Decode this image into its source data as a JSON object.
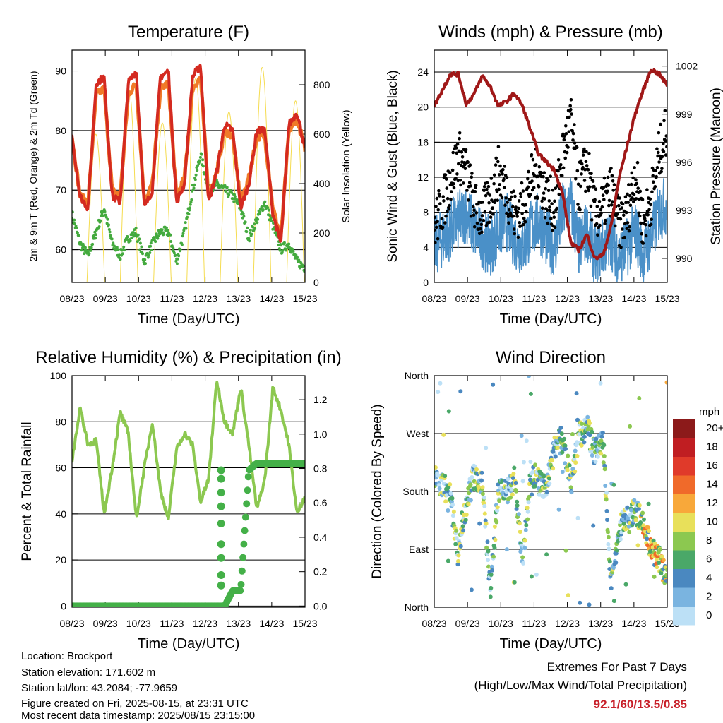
{
  "chart_data": [
    {
      "type": "line",
      "title": "Temperature (F)",
      "xlabel": "Time (Day/UTC)",
      "ylabel": "2m & 9m T (Red, Orange) & 2m Td (Green)",
      "y2label": "Solar Insolation (Yellow)",
      "x_ticks": [
        "08/23",
        "09/23",
        "10/23",
        "11/23",
        "12/23",
        "13/23",
        "14/23",
        "15/23"
      ],
      "ylim": [
        54.5,
        93.5
      ],
      "y_ticks": [
        60,
        70,
        80,
        90
      ],
      "y2lim": [
        0,
        940
      ],
      "y2_ticks": [
        0,
        200,
        400,
        600,
        800
      ],
      "grid": "horizontal",
      "series": [
        {
          "name": "2m T",
          "color": "#d42a20",
          "values": [
            79,
            69,
            67,
            88,
            89,
            69,
            68,
            88,
            90,
            67,
            70,
            89,
            90,
            68,
            71,
            89,
            91,
            68,
            73,
            81,
            80,
            67,
            71,
            80,
            80,
            66,
            61,
            81,
            83,
            77
          ]
        },
        {
          "name": "9m T",
          "color": "#f07a28",
          "values": [
            79,
            69,
            68,
            86,
            87,
            70,
            69,
            86,
            88,
            68,
            71,
            87,
            88,
            69,
            72,
            87,
            89,
            69,
            73,
            80,
            79,
            68,
            72,
            79,
            79,
            67,
            62,
            80,
            82,
            77
          ]
        },
        {
          "name": "2m Td",
          "color": "#44aa3e",
          "values": [
            66,
            61,
            59,
            63,
            67,
            61,
            59,
            62,
            63,
            58,
            61,
            63,
            63,
            58,
            63,
            70,
            76,
            70,
            71,
            70,
            69,
            67,
            62,
            65,
            68,
            64,
            60,
            61,
            58,
            57
          ]
        },
        {
          "name": "Solar Insolation",
          "color": "#f5dc50",
          "axis": "right",
          "values": [
            0,
            0,
            0,
            820,
            860,
            0,
            0,
            880,
            870,
            0,
            0,
            850,
            870,
            0,
            0,
            860,
            880,
            0,
            0,
            700,
            620,
            0,
            0,
            650,
            600,
            0,
            0,
            780,
            800,
            0
          ]
        }
      ]
    },
    {
      "type": "scatter",
      "title": "Winds (mph) & Pressure (mb)",
      "xlabel": "Time (Day/UTC)",
      "ylabel": "Sonic Wind & Gust (Blue, Black)",
      "y2label": "Station Pressure (Maroon)",
      "x_ticks": [
        "08/23",
        "09/23",
        "10/23",
        "11/23",
        "12/23",
        "13/23",
        "14/23",
        "15/23"
      ],
      "ylim": [
        0,
        26.5
      ],
      "y_ticks": [
        0,
        4,
        8,
        12,
        16,
        20,
        24
      ],
      "y2lim": [
        988.5,
        1003
      ],
      "y2_ticks": [
        990,
        993,
        996,
        999,
        1002
      ],
      "grid": "horizontal",
      "series": [
        {
          "name": "Sonic Wind",
          "color": "#4a90c8",
          "values": [
            4,
            5,
            6,
            7,
            8,
            6,
            5,
            4,
            6,
            7,
            5,
            4,
            6,
            7,
            5,
            4,
            8,
            9,
            4,
            6,
            3,
            4,
            5,
            3,
            4,
            6,
            3,
            5,
            8,
            9
          ]
        },
        {
          "name": "Gust",
          "color": "#000000",
          "values": [
            6,
            8,
            11,
            14,
            12,
            8,
            7,
            9,
            12,
            10,
            7,
            8,
            11,
            12,
            9,
            8,
            14,
            18,
            10,
            13,
            7,
            8,
            10,
            6,
            7,
            12,
            6,
            9,
            14,
            17
          ]
        },
        {
          "name": "Station Pressure",
          "color": "#a01818",
          "axis": "right",
          "values": [
            999.5,
            1000.5,
            1001.5,
            1001.5,
            999.6,
            1000.3,
            1001.4,
            1000.7,
            999.5,
            999.8,
            1000.3,
            999.5,
            998.0,
            996.5,
            996.0,
            995.5,
            994.0,
            991.0,
            990.5,
            991.5,
            990.0,
            990.2,
            992.0,
            995.0,
            997.0,
            999.0,
            1000.5,
            1001.8,
            1001.5,
            1000.8
          ]
        }
      ]
    },
    {
      "type": "line",
      "title": "Relative Humidity (%) & Precipitation (in)",
      "xlabel": "Time (Day/UTC)",
      "ylabel": "Percent & Total Rainfall",
      "x_ticks": [
        "08/23",
        "09/23",
        "10/23",
        "11/23",
        "12/23",
        "13/23",
        "14/23",
        "15/23"
      ],
      "ylim": [
        -0.5,
        100
      ],
      "y_ticks": [
        0,
        20,
        40,
        60,
        80,
        100
      ],
      "y2lim": [
        -0.0066,
        1.34
      ],
      "y2_ticks": [
        0.0,
        0.2,
        0.4,
        0.6,
        0.8,
        1.0,
        1.2
      ],
      "grid": "horizontal",
      "series": [
        {
          "name": "Relative Humidity",
          "color": "#8cc850",
          "values": [
            63,
            86,
            70,
            72,
            40,
            60,
            84,
            75,
            38,
            60,
            80,
            50,
            38,
            68,
            75,
            70,
            45,
            55,
            98,
            80,
            75,
            95,
            70,
            42,
            55,
            95,
            85,
            70,
            40,
            48
          ]
        },
        {
          "name": "Total Rainfall",
          "color": "#44b048",
          "axis": "right",
          "values": [
            0.0,
            0.0,
            0.0,
            0.0,
            0.0,
            0.0,
            0.0,
            0.0,
            0.0,
            0.0,
            0.0,
            0.0,
            0.0,
            0.0,
            0.0,
            0.0,
            0.0,
            0.0,
            0.0,
            0.0,
            0.09,
            0.09,
            0.79,
            0.83,
            0.83,
            0.83,
            0.83,
            0.83,
            0.83,
            0.83
          ]
        }
      ]
    },
    {
      "type": "scatter",
      "title": "Wind Direction",
      "xlabel": "Time (Day/UTC)",
      "ylabel": "Direction (Colored By Speed)",
      "x_ticks": [
        "08/23",
        "09/23",
        "10/23",
        "11/23",
        "12/23",
        "13/23",
        "14/23",
        "15/23"
      ],
      "y_ticks": [
        "North",
        "East",
        "South",
        "West",
        "North"
      ],
      "ylim": [
        0,
        360
      ],
      "grid": "horizontal",
      "legend": {
        "title": "mph",
        "labels": [
          "20+",
          "18",
          "16",
          "14",
          "12",
          "10",
          "8",
          "6",
          "4",
          "2",
          "0"
        ],
        "colors": [
          "#8c1a1a",
          "#c01e22",
          "#e03a2a",
          "#f06a2a",
          "#f8a83a",
          "#e8e05a",
          "#8cc850",
          "#4aa868",
          "#4a88c0",
          "#7ab4e0",
          "#bce0f6"
        ]
      },
      "series": [
        {
          "name": "Wind Direction",
          "values": [
            200,
            190,
            175,
            80,
            160,
            205,
            190,
            30,
            185,
            180,
            200,
            60,
            215,
            195,
            185,
            250,
            260,
            190,
            265,
            280,
            240,
            260,
            40,
            120,
            140,
            150,
            130,
            90,
            75,
            40
          ]
        }
      ]
    }
  ],
  "footer": {
    "location": "Location: Brockport",
    "elevation": "Station elevation: 171.602 m",
    "latlon": "Station lat/lon: 43.2084; -77.9659",
    "created": "Figure created on Fri, 2025-08-15, at 23:31 UTC",
    "recent": "Most recent data timestamp: 2025/08/15 23:15:00"
  },
  "extremes": {
    "title": "Extremes For Past 7 Days",
    "subtitle": "(High/Low/Max Wind/Total Precipitation)",
    "values": "92.1/60/13.5/0.85"
  }
}
